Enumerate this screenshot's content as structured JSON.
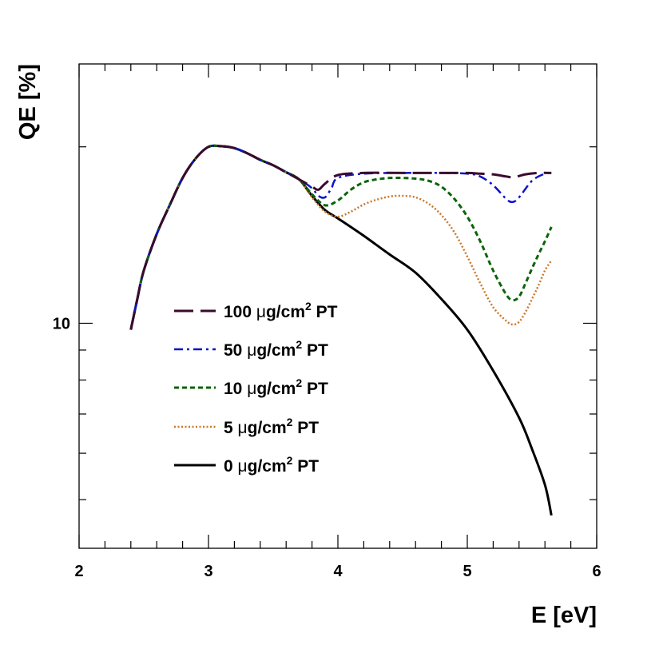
{
  "chart_data": {
    "type": "line",
    "xlabel": "E [eV]",
    "ylabel": "QE [%]",
    "xlim": [
      2,
      6
    ],
    "ylim": [
      4.13,
      27.7
    ],
    "yscale": "log",
    "x_ticks": [
      2,
      3,
      4,
      5,
      6
    ],
    "x_tick_labels": [
      "2",
      "3",
      "4",
      "5",
      "6"
    ],
    "y_tick_labels": [
      {
        "value": 10,
        "label": "10"
      }
    ],
    "legend_position": "center-left",
    "grid": false,
    "series": [
      {
        "name": "100 μg/cm² PT",
        "unit_prefix": "100",
        "unit_suffix": "PT",
        "color": "#3a0a2e",
        "dash": "24,9",
        "width": 3,
        "x": [
          3.7,
          3.8,
          3.85,
          3.9,
          4.0,
          4.2,
          4.5,
          4.8,
          5.0,
          5.1,
          5.2,
          5.3,
          5.36,
          5.45,
          5.55,
          5.65
        ],
        "y": [
          17.6,
          17.1,
          16.9,
          17.3,
          17.9,
          18.05,
          18.05,
          18.05,
          18.05,
          18.0,
          17.95,
          17.8,
          17.75,
          17.95,
          18.05,
          18.05
        ]
      },
      {
        "name": "50 μg/cm² PT",
        "unit_prefix": "50",
        "unit_suffix": "PT",
        "color": "#0a14c8",
        "dash": "11,5,3,5",
        "width": 2.5,
        "x": [
          3.7,
          3.8,
          3.85,
          3.9,
          3.95,
          4.0,
          4.2,
          4.5,
          4.8,
          5.0,
          5.1,
          5.2,
          5.3,
          5.35,
          5.4,
          5.5,
          5.6,
          5.65
        ],
        "y": [
          17.6,
          17.0,
          16.5,
          16.4,
          17.0,
          17.7,
          18.0,
          18.05,
          18.05,
          18.0,
          17.8,
          17.2,
          16.3,
          16.1,
          16.4,
          17.5,
          18.0,
          18.05
        ]
      },
      {
        "name": "10 μg/cm² PT",
        "unit_prefix": "10",
        "unit_suffix": "PT",
        "color": "#0a640a",
        "dash": "6,4",
        "width": 3,
        "x": [
          3.7,
          3.8,
          3.9,
          4.0,
          4.1,
          4.2,
          4.3,
          4.4,
          4.5,
          4.6,
          4.7,
          4.8,
          4.9,
          5.0,
          5.1,
          5.2,
          5.3,
          5.35,
          5.4,
          5.45,
          5.5,
          5.55,
          5.6,
          5.65
        ],
        "y": [
          17.6,
          16.6,
          15.9,
          16.2,
          16.9,
          17.4,
          17.6,
          17.7,
          17.7,
          17.65,
          17.5,
          17.1,
          16.3,
          15.2,
          13.8,
          12.3,
          11.2,
          10.95,
          11.1,
          11.7,
          12.4,
          13.1,
          13.8,
          14.6
        ]
      },
      {
        "name": "5 μg/cm² PT",
        "unit_prefix": "5",
        "unit_suffix": "PT",
        "color": "#c8782a",
        "dash": "2,2.5",
        "width": 2.5,
        "x": [
          3.7,
          3.8,
          3.9,
          4.0,
          4.1,
          4.2,
          4.3,
          4.4,
          4.5,
          4.6,
          4.7,
          4.8,
          4.9,
          5.0,
          5.1,
          5.2,
          5.3,
          5.35,
          5.4,
          5.45,
          5.5,
          5.55,
          5.6,
          5.65
        ],
        "y": [
          17.6,
          16.4,
          15.5,
          15.2,
          15.5,
          15.95,
          16.25,
          16.45,
          16.5,
          16.4,
          16.0,
          15.3,
          14.3,
          13.0,
          11.7,
          10.65,
          10.1,
          9.95,
          10.05,
          10.45,
          11.0,
          11.6,
          12.3,
          12.8
        ]
      },
      {
        "name": "0 μg/cm² PT",
        "unit_prefix": "0",
        "unit_suffix": "PT",
        "color": "#000000",
        "dash": "",
        "width": 3,
        "x": [
          2.4,
          2.45,
          2.5,
          2.6,
          2.7,
          2.8,
          2.9,
          3.0,
          3.1,
          3.2,
          3.3,
          3.4,
          3.5,
          3.6,
          3.7,
          3.8,
          3.9,
          4.0,
          4.2,
          4.4,
          4.6,
          4.8,
          5.0,
          5.2,
          5.4,
          5.5,
          5.6,
          5.65
        ],
        "y": [
          9.75,
          11.0,
          12.3,
          14.2,
          15.9,
          17.7,
          19.1,
          20.0,
          20.05,
          19.9,
          19.5,
          19.0,
          18.6,
          18.1,
          17.6,
          16.5,
          15.6,
          15.1,
          14.1,
          13.1,
          12.2,
          11.0,
          9.75,
          8.3,
          6.9,
          6.1,
          5.3,
          4.7
        ]
      }
    ]
  }
}
